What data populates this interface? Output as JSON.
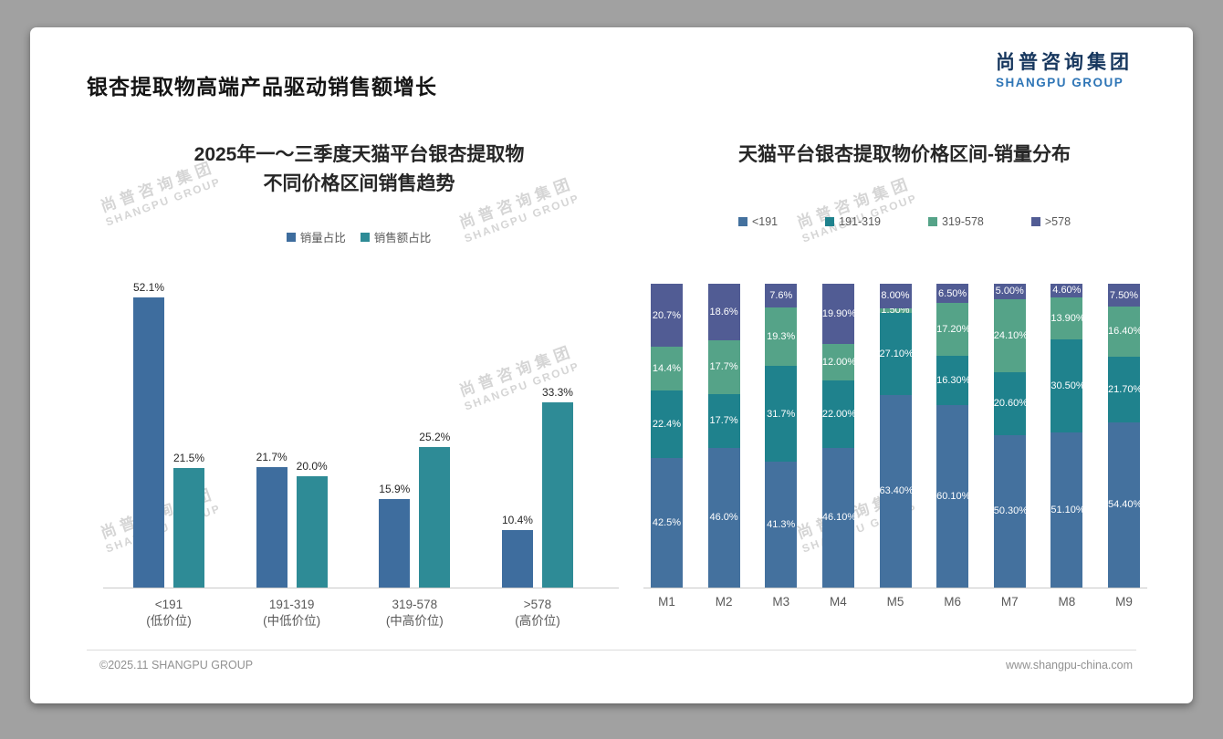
{
  "page": {
    "title": "银杏提取物高端产品驱动销售额增长"
  },
  "logo": {
    "cn": "尚普咨询集团",
    "en": "SHANGPU GROUP"
  },
  "watermark": {
    "cn": "尚普咨询集团",
    "en": "SHANGPU GROUP"
  },
  "footer": {
    "left": "©2025.11 SHANGPU GROUP",
    "right": "www.shangpu-china.com"
  },
  "colors": {
    "left_blue": "#3E6D9E",
    "left_teal": "#2E8B96",
    "right_blue": "#44719E",
    "right_teal": "#1F828D",
    "right_green": "#55A388",
    "right_purple": "#515C94",
    "logo_navy": "#17375E",
    "logo_blue": "#2E75B6"
  },
  "chart_data": [
    {
      "type": "bar",
      "variant": "grouped",
      "title_lines": [
        "2025年一～三季度天猫平台银杏提取物",
        "不同价格区间销售趋势"
      ],
      "categories": [
        "<191",
        "191-319",
        "319-578",
        ">578"
      ],
      "category_sublabels": [
        "(低价位)",
        "(中低价位)",
        "(中高价位)",
        "(高价位)"
      ],
      "series": [
        {
          "name": "销量占比",
          "color": "#3E6D9E",
          "values": [
            52.1,
            21.7,
            15.9,
            10.4
          ],
          "labels": [
            "52.1%",
            "21.7%",
            "15.9%",
            "10.4%"
          ]
        },
        {
          "name": "销售额占比",
          "color": "#2E8B96",
          "values": [
            21.5,
            20.0,
            25.2,
            33.3
          ],
          "labels": [
            "21.5%",
            "20.0%",
            "25.2%",
            "33.3%"
          ]
        }
      ],
      "ylim": [
        0,
        55
      ],
      "grid": false,
      "legend_position": "top"
    },
    {
      "type": "bar",
      "stacked": true,
      "title": "天猫平台银杏提取物价格区间-销量分布",
      "categories": [
        "M1",
        "M2",
        "M3",
        "M4",
        "M5",
        "M6",
        "M7",
        "M8",
        "M9"
      ],
      "series": [
        {
          "name": "<191",
          "color": "#44719E",
          "values": [
            42.5,
            46.0,
            41.3,
            46.1,
            63.4,
            60.1,
            50.3,
            51.1,
            54.4
          ],
          "labels": [
            "42.5%",
            "46.0%",
            "41.3%",
            "46.10%",
            "63.40%",
            "60.10%",
            "50.30%",
            "51.10%",
            "54.40%"
          ]
        },
        {
          "name": "191-319",
          "color": "#1F828D",
          "values": [
            22.4,
            17.7,
            31.7,
            22.0,
            27.1,
            16.3,
            20.6,
            30.5,
            21.7
          ],
          "labels": [
            "22.4%",
            "17.7%",
            "31.7%",
            "22.00%",
            "27.10%",
            "16.30%",
            "20.60%",
            "30.50%",
            "21.70%"
          ]
        },
        {
          "name": "319-578",
          "color": "#55A388",
          "values": [
            14.4,
            17.7,
            19.3,
            12.0,
            1.5,
            17.2,
            24.1,
            13.9,
            16.4
          ],
          "labels": [
            "14.4%",
            "17.7%",
            "19.3%",
            "12.00%",
            "1.50%",
            "17.20%",
            "24.10%",
            "13.90%",
            "16.40%"
          ]
        },
        {
          "name": ">578",
          "color": "#515C94",
          "values": [
            20.7,
            18.6,
            7.6,
            19.9,
            8.0,
            6.5,
            5.0,
            4.6,
            7.5
          ],
          "labels": [
            "20.7%",
            "18.6%",
            "7.6%",
            "19.90%",
            "8.00%",
            "6.50%",
            "5.00%",
            "4.60%",
            "7.50%"
          ]
        }
      ],
      "ylim": [
        0,
        100
      ],
      "grid": false,
      "legend_position": "top"
    }
  ]
}
